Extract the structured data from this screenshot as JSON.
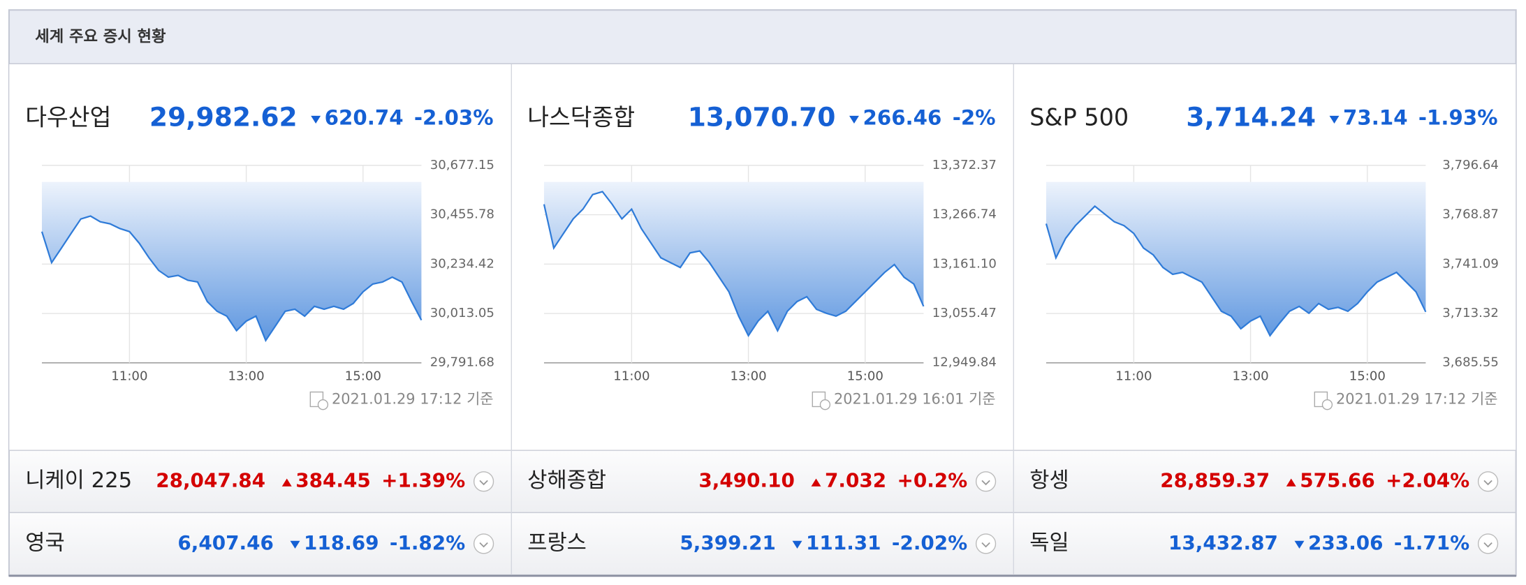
{
  "header": {
    "title": "세계 주요 증시 현황"
  },
  "main": [
    {
      "name": "다우산업",
      "value": "29,982.62",
      "direction": "down",
      "change": "620.74",
      "pct": "-2.03%",
      "timestamp": "2021.01.29 17:12 기준",
      "chart_data": {
        "type": "line",
        "color": "#2f7bd8",
        "x": [
          "09:30",
          "09:40",
          "09:50",
          "10:00",
          "10:10",
          "10:20",
          "10:30",
          "10:40",
          "10:50",
          "11:00",
          "11:10",
          "11:20",
          "11:30",
          "11:40",
          "11:50",
          "12:00",
          "12:10",
          "12:20",
          "12:30",
          "12:40",
          "12:50",
          "13:00",
          "13:10",
          "13:20",
          "13:30",
          "13:40",
          "13:50",
          "14:00",
          "14:10",
          "14:20",
          "14:30",
          "14:40",
          "14:50",
          "15:00",
          "15:10",
          "15:20",
          "15:30",
          "15:40",
          "15:50",
          "16:00"
        ],
        "values": [
          30380,
          30241,
          30306,
          30372,
          30437,
          30450,
          30424,
          30415,
          30394,
          30380,
          30328,
          30263,
          30206,
          30176,
          30184,
          30162,
          30154,
          30066,
          30023,
          30001,
          29936,
          29979,
          30001,
          29892,
          29957,
          30023,
          30032,
          30001,
          30045,
          30032,
          30045,
          30032,
          30058,
          30110,
          30145,
          30154,
          30176,
          30154,
          30066,
          29983
        ],
        "xlim": [
          "09:30",
          "16:00"
        ],
        "xticks": [
          "11:00",
          "13:00",
          "15:00"
        ],
        "ylim": [
          29791.68,
          30677.15
        ],
        "yticks": [
          {
            "value": 29791.68,
            "label": "29,791.68"
          },
          {
            "value": 30013.05,
            "label": "30,013.05"
          },
          {
            "value": 30234.42,
            "label": "30,234.42"
          },
          {
            "value": 30455.78,
            "label": "30,455.78"
          },
          {
            "value": 30677.15,
            "label": "30,677.15"
          }
        ]
      }
    },
    {
      "name": "나스닥종합",
      "value": "13,070.70",
      "direction": "down",
      "change": "266.46",
      "pct": "-2%",
      "timestamp": "2021.01.29 16:01 기준",
      "chart_data": {
        "type": "line",
        "color": "#2f7bd8",
        "x": [
          "09:30",
          "09:40",
          "09:50",
          "10:00",
          "10:10",
          "10:20",
          "10:30",
          "10:40",
          "10:50",
          "11:00",
          "11:10",
          "11:20",
          "11:30",
          "11:40",
          "11:50",
          "12:00",
          "12:10",
          "12:20",
          "12:30",
          "12:40",
          "12:50",
          "13:00",
          "13:10",
          "13:20",
          "13:30",
          "13:40",
          "13:50",
          "14:00",
          "14:10",
          "14:20",
          "14:30",
          "14:40",
          "14:50",
          "15:00",
          "15:10",
          "15:20",
          "15:30",
          "15:40",
          "15:50",
          "16:00"
        ],
        "values": [
          13289.1,
          13195.5,
          13226.7,
          13257.9,
          13278.7,
          13309.9,
          13316.2,
          13289.1,
          13257.9,
          13278.7,
          13237.1,
          13205.9,
          13174.6,
          13164.2,
          13153.8,
          13185.1,
          13189.2,
          13164.2,
          13133.0,
          13101.8,
          13049.8,
          13008.2,
          13039.4,
          13060.2,
          13018.5,
          13060.2,
          13081.0,
          13091.4,
          13064.3,
          13056.0,
          13049.8,
          13060.2,
          13081.0,
          13101.8,
          13122.6,
          13143.5,
          13160.1,
          13133.0,
          13118.4,
          13070.7
        ],
        "xlim": [
          "09:30",
          "16:00"
        ],
        "xticks": [
          "11:00",
          "13:00",
          "15:00"
        ],
        "ylim": [
          12949.84,
          13372.37
        ],
        "yticks": [
          {
            "value": 12949.84,
            "label": "12,949.84"
          },
          {
            "value": 13055.47,
            "label": "13,055.47"
          },
          {
            "value": 13161.1,
            "label": "13,161.10"
          },
          {
            "value": 13266.74,
            "label": "13,266.74"
          },
          {
            "value": 13372.37,
            "label": "13,372.37"
          }
        ]
      }
    },
    {
      "name": "S&P 500",
      "value": "3,714.24",
      "direction": "down",
      "change": "73.14",
      "pct": "-1.93%",
      "timestamp": "2021.01.29 17:12 기준",
      "chart_data": {
        "type": "line",
        "color": "#2f7bd8",
        "x": [
          "09:30",
          "09:40",
          "09:50",
          "10:00",
          "10:10",
          "10:20",
          "10:30",
          "10:40",
          "10:50",
          "11:00",
          "11:10",
          "11:20",
          "11:30",
          "11:40",
          "11:50",
          "12:00",
          "12:10",
          "12:20",
          "12:30",
          "12:40",
          "12:50",
          "13:00",
          "13:10",
          "13:20",
          "13:30",
          "13:40",
          "13:50",
          "14:00",
          "14:10",
          "14:20",
          "14:30",
          "14:40",
          "14:50",
          "15:00",
          "15:10",
          "15:20",
          "15:30",
          "15:40",
          "15:50",
          "16:00"
        ],
        "values": [
          3763.81,
          3744.66,
          3755.6,
          3762.71,
          3768.17,
          3773.66,
          3769.28,
          3764.9,
          3762.71,
          3758.34,
          3750.13,
          3746.3,
          3739.18,
          3735.35,
          3736.45,
          3733.71,
          3730.97,
          3722.77,
          3714.56,
          3711.82,
          3704.71,
          3709.09,
          3711.82,
          3700.88,
          3707.99,
          3714.56,
          3717.3,
          3713.47,
          3718.94,
          3715.66,
          3716.75,
          3714.56,
          3718.94,
          3725.5,
          3730.97,
          3733.71,
          3736.45,
          3730.97,
          3725.5,
          3714.24
        ],
        "xlim": [
          "09:30",
          "16:00"
        ],
        "xticks": [
          "11:00",
          "13:00",
          "15:00"
        ],
        "ylim": [
          3685.55,
          3796.64
        ],
        "yticks": [
          {
            "value": 3685.55,
            "label": "3,685.55"
          },
          {
            "value": 3713.32,
            "label": "3,713.32"
          },
          {
            "value": 3741.09,
            "label": "3,741.09"
          },
          {
            "value": 3768.87,
            "label": "3,768.87"
          },
          {
            "value": 3796.64,
            "label": "3,796.64"
          }
        ]
      }
    }
  ],
  "rows": [
    [
      {
        "name": "니케이 225",
        "value": "28,047.84",
        "direction": "up",
        "change": "384.45",
        "pct": "+1.39%"
      },
      {
        "name": "상해종합",
        "value": "3,490.10",
        "direction": "up",
        "change": "7.032",
        "pct": "+0.2%"
      },
      {
        "name": "항셍",
        "value": "28,859.37",
        "direction": "up",
        "change": "575.66",
        "pct": "+2.04%"
      }
    ],
    [
      {
        "name": "영국",
        "value": "6,407.46",
        "direction": "down",
        "change": "118.69",
        "pct": "-1.82%"
      },
      {
        "name": "프랑스",
        "value": "5,399.21",
        "direction": "down",
        "change": "111.31",
        "pct": "-2.02%"
      },
      {
        "name": "독일",
        "value": "13,432.87",
        "direction": "down",
        "change": "233.06",
        "pct": "-1.71%"
      }
    ]
  ]
}
